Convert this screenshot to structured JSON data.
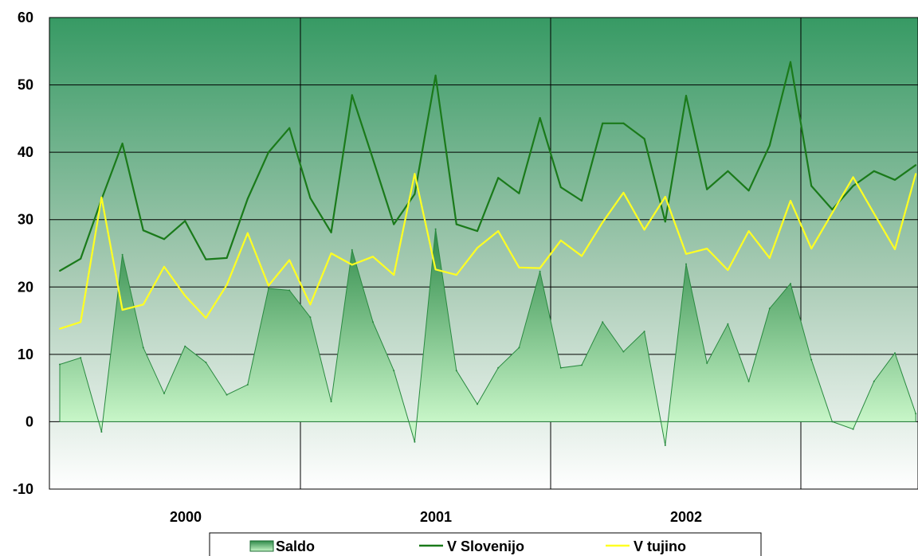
{
  "chart_data": {
    "type": "area",
    "title": "",
    "xlabel": "",
    "ylabel": "",
    "ylim": [
      -10,
      60
    ],
    "yticks": [
      "60",
      "50",
      "40",
      "30",
      "20",
      "10",
      "0",
      "-10"
    ],
    "year_labels": [
      "2000",
      "2001",
      "2002"
    ],
    "grid": true,
    "legend": "bottom",
    "series": [
      {
        "name": "Saldo",
        "kind": "area",
        "color": "#3a9a5a",
        "values": [
          8.5,
          9.5,
          -1.5,
          24.8,
          11.0,
          4.2,
          11.2,
          8.8,
          4.0,
          5.5,
          19.8,
          19.5,
          15.5,
          3.0,
          25.5,
          14.8,
          7.6,
          -3.0,
          28.6,
          7.6,
          2.6,
          8.0,
          11.0,
          22.3,
          8.0,
          8.4,
          14.8,
          10.4,
          13.4,
          -3.5,
          23.4,
          8.7,
          14.5,
          6.0,
          16.8,
          20.5,
          9.2,
          0.0,
          -1.1,
          6.0,
          10.2,
          1.2
        ]
      },
      {
        "name": "V Slovenijo",
        "kind": "line",
        "color": "#1a7a1a",
        "values": [
          22.4,
          24.2,
          33.0,
          41.3,
          28.4,
          27.1,
          29.8,
          24.1,
          24.3,
          33.1,
          40.0,
          43.6,
          33.2,
          28.1,
          48.5,
          39.0,
          29.3,
          33.8,
          51.4,
          29.3,
          28.3,
          36.2,
          33.9,
          45.1,
          34.8,
          32.8,
          44.3,
          44.3,
          42.0,
          29.7,
          48.4,
          34.5,
          37.2,
          34.3,
          41.0,
          53.4,
          35.0,
          31.5,
          35.0,
          37.2,
          35.9,
          38.1
        ]
      },
      {
        "name": "V tujino",
        "kind": "line",
        "color": "#ffff22",
        "values": [
          13.8,
          14.8,
          33.3,
          16.6,
          17.4,
          23.0,
          18.7,
          15.4,
          20.3,
          28.0,
          20.2,
          24.0,
          17.4,
          25.0,
          23.3,
          24.5,
          21.8,
          36.8,
          22.6,
          21.8,
          25.8,
          28.3,
          22.9,
          22.8,
          26.9,
          24.6,
          29.6,
          34.0,
          28.5,
          33.4,
          24.9,
          25.7,
          22.5,
          28.3,
          24.3,
          32.8,
          25.7,
          31.0,
          36.3,
          30.9,
          25.6,
          36.8
        ]
      }
    ]
  }
}
